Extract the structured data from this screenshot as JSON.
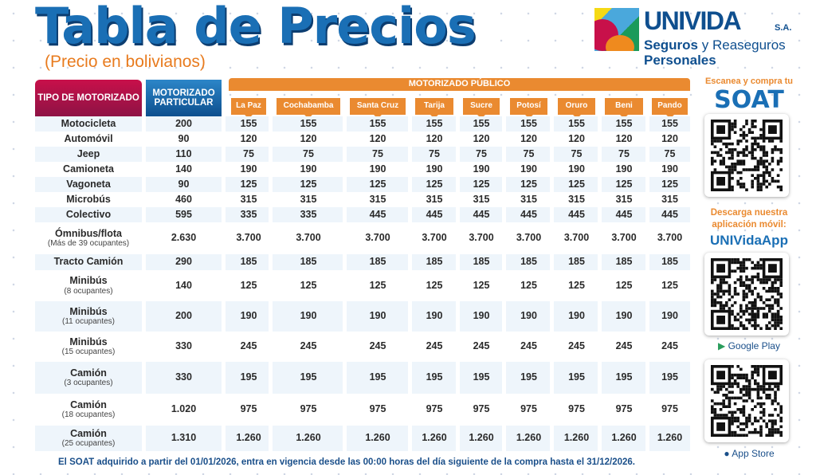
{
  "header": {
    "title": "Tabla de Precios",
    "subtitle": "(Precio en bolivianos)"
  },
  "logo": {
    "name": "UNIVIDA",
    "suffix": "S.A.",
    "line1_bold": "Seguros",
    "line1_rest": " y Reaseguros",
    "line2": "Personales"
  },
  "table": {
    "col_type": "TIPO DE MOTORIZADO",
    "col_private": "MOTORIZADO PARTICULAR",
    "col_public": "MOTORIZADO PÚBLICO",
    "cities": [
      "La Paz",
      "Cochabamba",
      "Santa Cruz",
      "Tarija",
      "Sucre",
      "Potosí",
      "Oruro",
      "Beni",
      "Pando"
    ],
    "rows": [
      {
        "type": "Motocicleta",
        "note": "",
        "private": "200",
        "public": [
          "155",
          "155",
          "155",
          "155",
          "155",
          "155",
          "155",
          "155",
          "155"
        ]
      },
      {
        "type": "Automóvil",
        "note": "",
        "private": "90",
        "public": [
          "120",
          "120",
          "120",
          "120",
          "120",
          "120",
          "120",
          "120",
          "120"
        ]
      },
      {
        "type": "Jeep",
        "note": "",
        "private": "110",
        "public": [
          "75",
          "75",
          "75",
          "75",
          "75",
          "75",
          "75",
          "75",
          "75"
        ]
      },
      {
        "type": "Camioneta",
        "note": "",
        "private": "140",
        "public": [
          "190",
          "190",
          "190",
          "190",
          "190",
          "190",
          "190",
          "190",
          "190"
        ]
      },
      {
        "type": "Vagoneta",
        "note": "",
        "private": "90",
        "public": [
          "125",
          "125",
          "125",
          "125",
          "125",
          "125",
          "125",
          "125",
          "125"
        ]
      },
      {
        "type": "Microbús",
        "note": "",
        "private": "460",
        "public": [
          "315",
          "315",
          "315",
          "315",
          "315",
          "315",
          "315",
          "315",
          "315"
        ]
      },
      {
        "type": "Colectivo",
        "note": "",
        "private": "595",
        "public": [
          "335",
          "335",
          "445",
          "445",
          "445",
          "445",
          "445",
          "445",
          "445"
        ]
      },
      {
        "type": "Ómnibus/flota",
        "note": "(Más de 39 ocupantes)",
        "private": "2.630",
        "public": [
          "3.700",
          "3.700",
          "3.700",
          "3.700",
          "3.700",
          "3.700",
          "3.700",
          "3.700",
          "3.700"
        ]
      },
      {
        "type": "Tracto Camión",
        "note": "",
        "private": "290",
        "public": [
          "185",
          "185",
          "185",
          "185",
          "185",
          "185",
          "185",
          "185",
          "185"
        ]
      },
      {
        "type": "Minibús",
        "note": "(8 ocupantes)",
        "private": "140",
        "public": [
          "125",
          "125",
          "125",
          "125",
          "125",
          "125",
          "125",
          "125",
          "125"
        ]
      },
      {
        "type": "Minibús",
        "note": "(11 ocupantes)",
        "private": "200",
        "public": [
          "190",
          "190",
          "190",
          "190",
          "190",
          "190",
          "190",
          "190",
          "190"
        ]
      },
      {
        "type": "Minibús",
        "note": "(15 ocupantes)",
        "private": "330",
        "public": [
          "245",
          "245",
          "245",
          "245",
          "245",
          "245",
          "245",
          "245",
          "245"
        ]
      },
      {
        "type": "Camión",
        "note": "(3 ocupantes)",
        "private": "330",
        "public": [
          "195",
          "195",
          "195",
          "195",
          "195",
          "195",
          "195",
          "195",
          "195"
        ]
      },
      {
        "type": "Camión",
        "note": "(18 ocupantes)",
        "private": "1.020",
        "public": [
          "975",
          "975",
          "975",
          "975",
          "975",
          "975",
          "975",
          "975",
          "975"
        ]
      },
      {
        "type": "Camión",
        "note": "(25 ocupantes)",
        "private": "1.310",
        "public": [
          "1.260",
          "1.260",
          "1.260",
          "1.260",
          "1.260",
          "1.260",
          "1.260",
          "1.260",
          "1.260"
        ]
      }
    ]
  },
  "footer": "El SOAT adquirido a partir del 01/01/2026, entra en vigencia desde las 00:00 horas del día siguiente de la compra hasta el 31/12/2026.",
  "side": {
    "scan": "Escanea y compra tu",
    "soat": "SOAT",
    "download1": "Descarga nuestra",
    "download2": "aplicación móvil:",
    "app": "UNIVidaApp",
    "google": "Google Play",
    "apple": "App Store"
  },
  "colors": {
    "magenta": "#c8104a",
    "blue": "#1a6fb5",
    "orange": "#ea8a30",
    "navy": "#0f4f8f"
  }
}
